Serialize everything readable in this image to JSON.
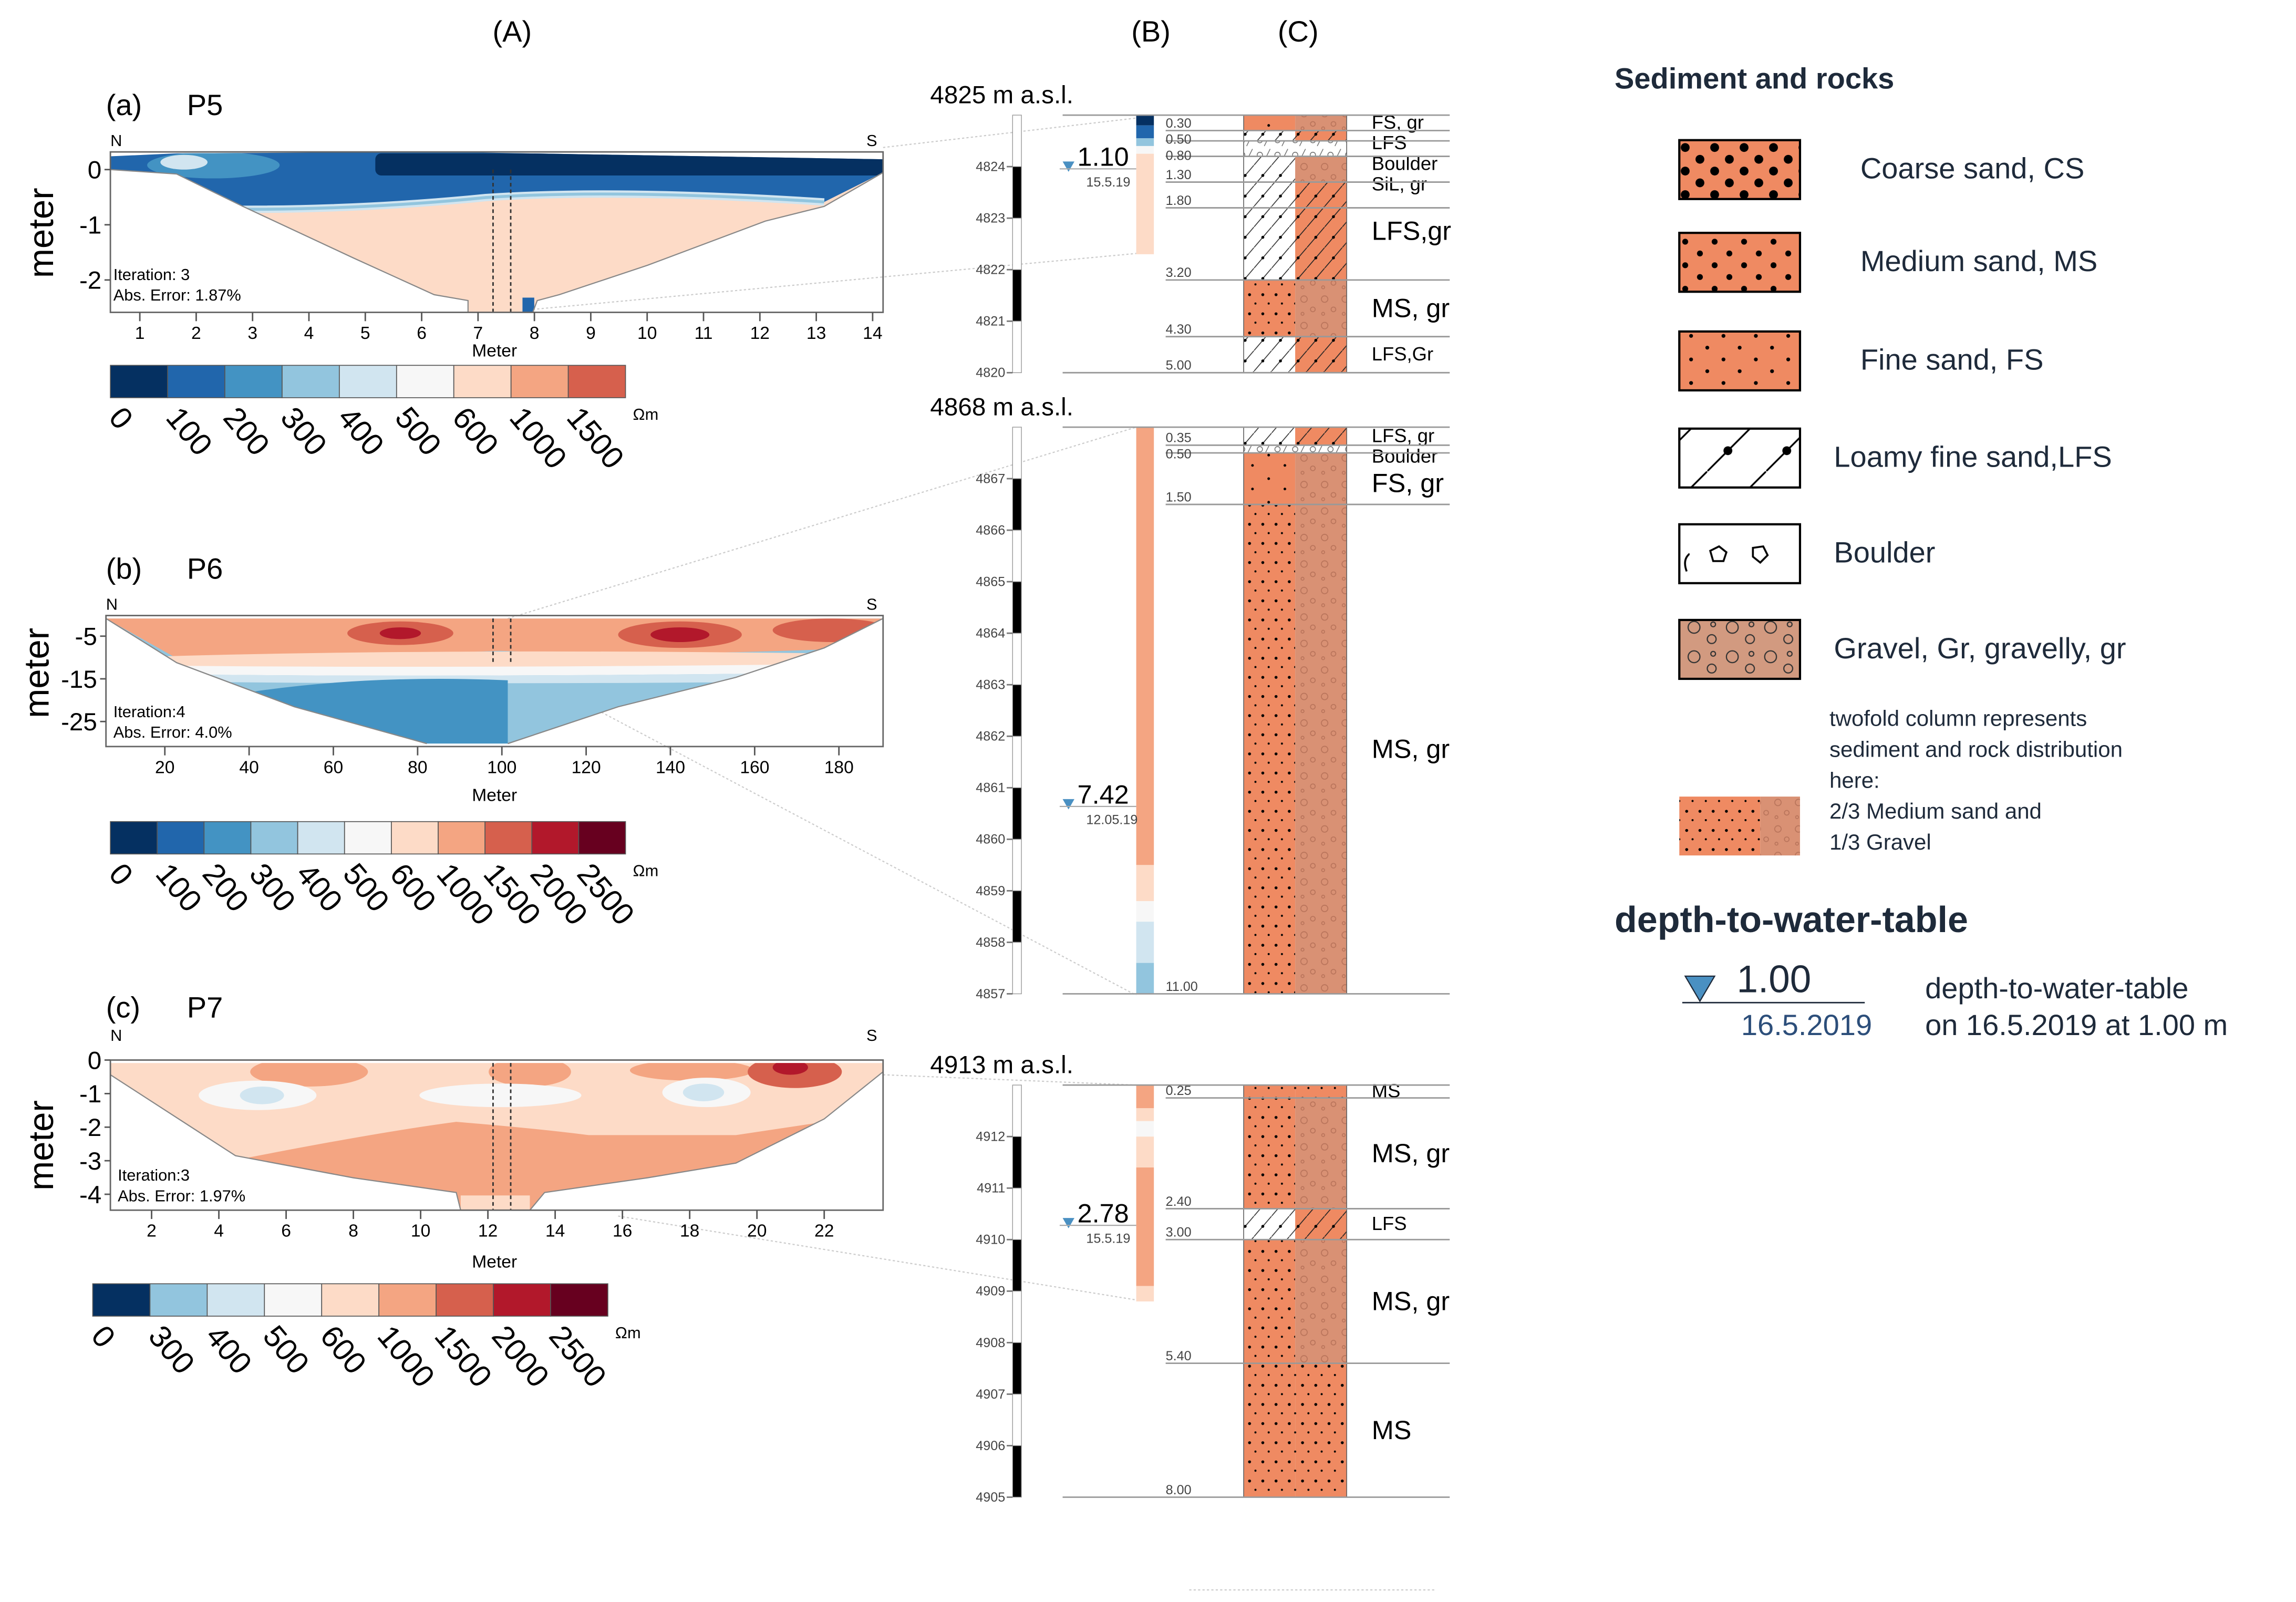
{
  "headers": {
    "A": "(A)",
    "B": "(B)",
    "C": "(C)"
  },
  "sections": [
    {
      "label": "(a)",
      "title": "P5",
      "north": "N",
      "south": "S",
      "y_axis_label": "meter",
      "x_axis_label": "Meter",
      "iteration": "Iteration: 3",
      "abs_error": "Abs. Error: 1.87%",
      "x_ticks": [
        1,
        2,
        3,
        4,
        5,
        6,
        7,
        8,
        9,
        10,
        11,
        12,
        13,
        14
      ],
      "y_ticks": [
        {
          "value": 0,
          "label": "0"
        },
        {
          "value": -1,
          "label": "-1"
        },
        {
          "value": -2,
          "label": "-2"
        }
      ],
      "colorbar": {
        "unit": "Ωm",
        "labels": [
          "0",
          "100",
          "200",
          "300",
          "400",
          "500",
          "600",
          "1000",
          "1500"
        ],
        "colors": [
          "#053061",
          "#2166ac",
          "#4393c3",
          "#92c5de",
          "#d1e5f0",
          "#f7f7f7",
          "#fddbc7",
          "#f4a582",
          "#d6604d"
        ]
      }
    },
    {
      "label": "(b)",
      "title": "P6",
      "north": "N",
      "south": "S",
      "y_axis_label": "meter",
      "x_axis_label": "Meter",
      "iteration": "Iteration:4",
      "abs_error": "Abs. Error: 4.0%",
      "x_ticks": [
        20,
        40,
        60,
        80,
        100,
        120,
        140,
        160,
        180
      ],
      "y_ticks": [
        {
          "value": -5,
          "label": "-5"
        },
        {
          "value": -15,
          "label": "-15"
        },
        {
          "value": -25,
          "label": "-25"
        }
      ],
      "colorbar": {
        "unit": "Ωm",
        "labels": [
          "0",
          "100",
          "200",
          "300",
          "400",
          "500",
          "600",
          "1000",
          "1500",
          "2000",
          "2500"
        ],
        "colors": [
          "#053061",
          "#2166ac",
          "#4393c3",
          "#92c5de",
          "#d1e5f0",
          "#f7f7f7",
          "#fddbc7",
          "#f4a582",
          "#d6604d",
          "#b2182b",
          "#67001f"
        ]
      }
    },
    {
      "label": "(c)",
      "title": "P7",
      "north": "N",
      "south": "S",
      "y_axis_label": "meter",
      "x_axis_label": "Meter",
      "iteration": "Iteration:3",
      "abs_error": "Abs. Error: 1.97%",
      "x_ticks": [
        2,
        4,
        6,
        8,
        10,
        12,
        14,
        16,
        18,
        20,
        22
      ],
      "y_ticks": [
        {
          "value": 0,
          "label": "0"
        },
        {
          "value": -1,
          "label": "-1"
        },
        {
          "value": -2,
          "label": "-2"
        },
        {
          "value": -3,
          "label": "-3"
        },
        {
          "value": -4,
          "label": "-4"
        }
      ],
      "colorbar": {
        "unit": "Ωm",
        "labels": [
          "0",
          "300",
          "400",
          "500",
          "600",
          "1000",
          "1500",
          "2000",
          "2500"
        ],
        "colors": [
          "#053061",
          "#92c5de",
          "#d1e5f0",
          "#f7f7f7",
          "#fddbc7",
          "#f4a582",
          "#d6604d",
          "#b2182b",
          "#67001f"
        ]
      }
    }
  ],
  "boreholes": [
    {
      "elevation_label": "4825 m a.s.l.",
      "top_elevation": 4825,
      "elevation_ticks": [
        "4824",
        "4823",
        "4822",
        "4821",
        "4820"
      ],
      "water_level": "1.10",
      "water_depth": 1.1,
      "water_date": "15.5.19",
      "depths": [
        "0.30",
        "0.50",
        "0.80",
        "1.30",
        "1.80",
        "3.20",
        "4.30",
        "5.00"
      ],
      "strip": [
        {
          "from": 0,
          "to": 0.2,
          "color": "#053061"
        },
        {
          "from": 0.2,
          "to": 0.45,
          "color": "#2166ac"
        },
        {
          "from": 0.45,
          "to": 0.6,
          "color": "#92c5de"
        },
        {
          "from": 0.6,
          "to": 0.75,
          "color": "#f7f7f7"
        },
        {
          "from": 0.75,
          "to": 2.7,
          "color": "#fddbc7"
        }
      ],
      "layers": [
        {
          "from": 0,
          "to": 0.3,
          "label": "FS, gr",
          "left": "FS",
          "right": "GR"
        },
        {
          "from": 0.3,
          "to": 0.5,
          "label": "LFS",
          "left": "LFSW",
          "right": "LFSO"
        },
        {
          "from": 0.5,
          "to": 0.8,
          "label": "Boulder",
          "left": "BLD",
          "right": "BLD"
        },
        {
          "from": 0.8,
          "to": 1.3,
          "label": "SiL, gr",
          "left": "LFSW",
          "right": "GR"
        },
        {
          "from": 1.3,
          "to": 3.2,
          "label": "LFS,gr",
          "left": "LFSW",
          "right": "LFSO"
        },
        {
          "from": 3.2,
          "to": 4.3,
          "label": "MS, gr",
          "left": "MS",
          "right": "GR"
        },
        {
          "from": 4.3,
          "to": 5.0,
          "label": "LFS,Gr",
          "left": "LFSW",
          "right": "LFSO"
        }
      ]
    },
    {
      "elevation_label": "4868 m a.s.l.",
      "top_elevation": 4868,
      "elevation_ticks": [
        "4867",
        "4866",
        "4865",
        "4864",
        "4863",
        "4862",
        "4861",
        "4860",
        "4859",
        "4858",
        "4857"
      ],
      "water_level": "7.42",
      "water_depth": 7.42,
      "water_date": "12.05.19",
      "depths": [
        "0.35",
        "0.50",
        "1.50",
        "11.00"
      ],
      "strip": [
        {
          "from": 0,
          "to": 8.5,
          "color": "#f4a582"
        },
        {
          "from": 8.5,
          "to": 9.2,
          "color": "#fddbc7"
        },
        {
          "from": 9.2,
          "to": 9.6,
          "color": "#f7f7f7"
        },
        {
          "from": 9.6,
          "to": 10.4,
          "color": "#d1e5f0"
        },
        {
          "from": 10.4,
          "to": 11.0,
          "color": "#92c5de"
        }
      ],
      "layers": [
        {
          "from": 0,
          "to": 0.35,
          "label": "LFS, gr",
          "left": "LFSW",
          "right": "LFSO"
        },
        {
          "from": 0.35,
          "to": 0.5,
          "label": "Boulder",
          "left": "BLD",
          "right": "BLD"
        },
        {
          "from": 0.5,
          "to": 1.5,
          "label": "FS, gr",
          "left": "FS",
          "right": "GR"
        },
        {
          "from": 1.5,
          "to": 11.0,
          "label": "MS, gr",
          "left": "MS",
          "right": "GR"
        }
      ]
    },
    {
      "elevation_label": "4913 m a.s.l.",
      "top_elevation": 4913,
      "elevation_ticks": [
        "4912",
        "4911",
        "4910",
        "4909",
        "4908",
        "4907",
        "4906",
        "4905"
      ],
      "water_level": "2.78",
      "water_depth": 2.78,
      "water_date": "15.5.19",
      "depths": [
        "0.25",
        "2.40",
        "3.00",
        "5.40",
        "8.00"
      ],
      "strip": [
        {
          "from": 0,
          "to": 0.45,
          "color": "#f4a582"
        },
        {
          "from": 0.45,
          "to": 0.7,
          "color": "#fddbc7"
        },
        {
          "from": 0.7,
          "to": 1.0,
          "color": "#f7f7f7"
        },
        {
          "from": 1.0,
          "to": 1.6,
          "color": "#fddbc7"
        },
        {
          "from": 1.6,
          "to": 3.9,
          "color": "#f4a582"
        },
        {
          "from": 3.9,
          "to": 4.2,
          "color": "#fddbc7"
        }
      ],
      "layers": [
        {
          "from": 0,
          "to": 0.25,
          "label": "MS",
          "left": "MS",
          "right": "MS"
        },
        {
          "from": 0.25,
          "to": 2.4,
          "label": "MS, gr",
          "left": "MS",
          "right": "GR"
        },
        {
          "from": 2.4,
          "to": 3.0,
          "label": "LFS",
          "left": "LFSW",
          "right": "LFSO"
        },
        {
          "from": 3.0,
          "to": 5.4,
          "label": "MS, gr",
          "left": "MS",
          "right": "GR"
        },
        {
          "from": 5.4,
          "to": 8.0,
          "label": "MS",
          "left": "MS",
          "right": "MS"
        }
      ]
    }
  ],
  "legend": {
    "title": "Sediment and rocks",
    "items": [
      {
        "label": "Coarse sand, CS",
        "pattern": "CS"
      },
      {
        "label": "Medium sand, MS",
        "pattern": "MSL"
      },
      {
        "label": "Fine sand, FS",
        "pattern": "FSL"
      },
      {
        "label": "Loamy fine sand,LFS",
        "pattern": "LFSL"
      },
      {
        "label": "Boulder",
        "pattern": "BLDL"
      },
      {
        "label": "Gravel, Gr, gravelly, gr",
        "pattern": "GRL"
      }
    ],
    "twofold_note": [
      "twofold column represents",
      "sediment and rock distribution",
      "here:",
      "2/3 Medium sand and",
      "1/3 Gravel"
    ],
    "water_title": "depth-to-water-table",
    "water_example_value": "1.00",
    "water_example_date": "16.5.2019",
    "water_desc_1": "depth-to-water-table",
    "water_desc_2": "on 16.5.2019 at 1.00 m"
  }
}
